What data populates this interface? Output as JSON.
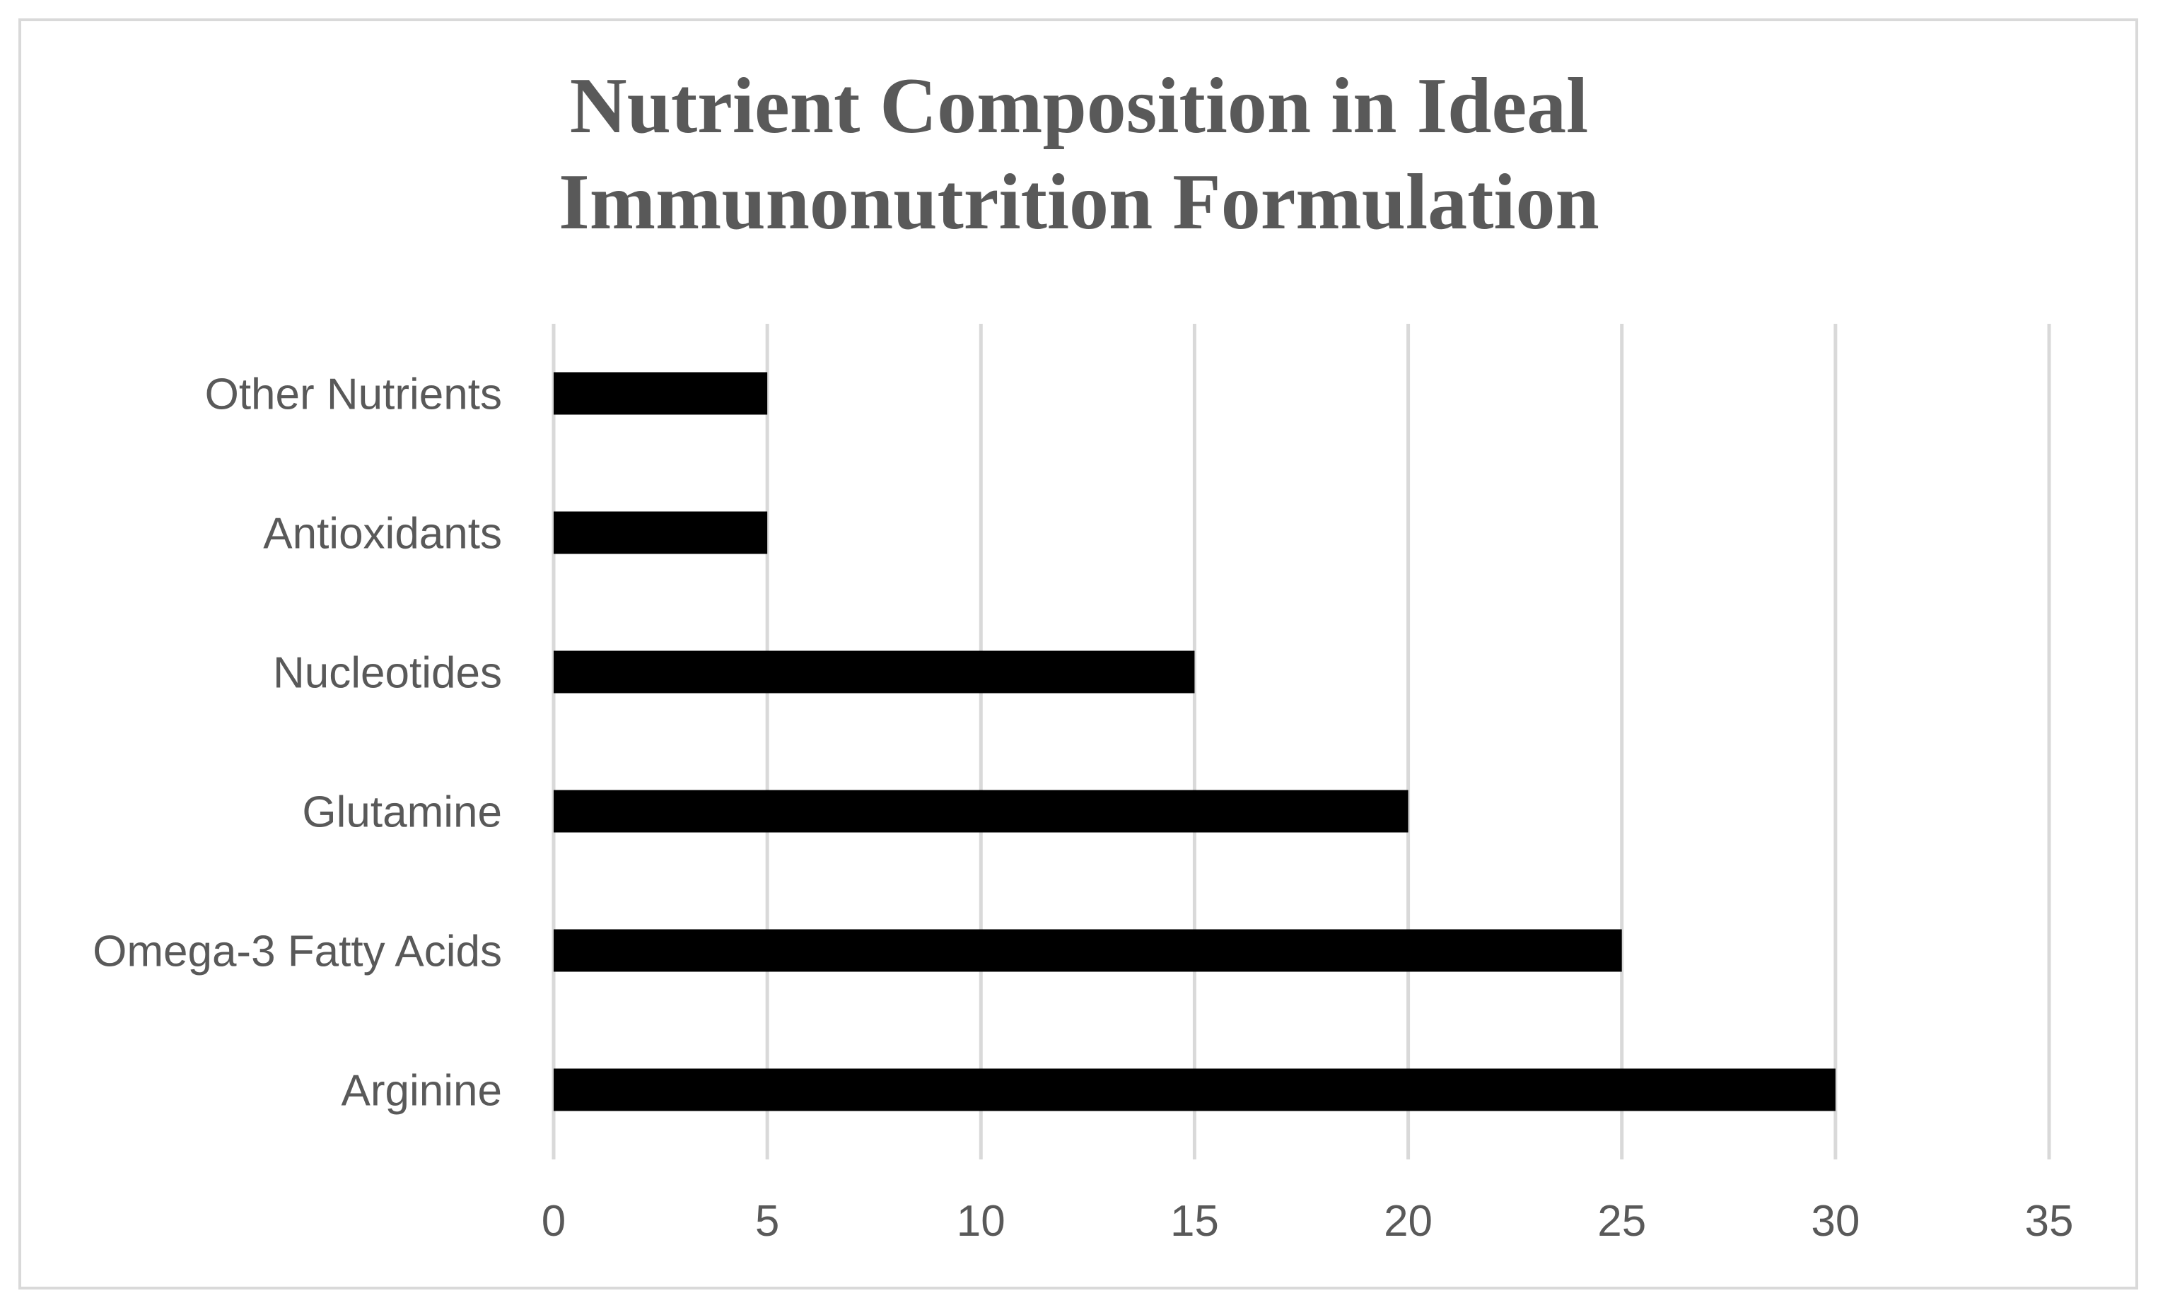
{
  "chart_data": {
    "type": "bar",
    "orientation": "horizontal",
    "title_lines": [
      "Nutrient Composition in Ideal",
      "Immunonutrition Formulation"
    ],
    "categories": [
      "Arginine",
      "Omega-3 Fatty Acids",
      "Glutamine",
      "Nucleotides",
      "Antioxidants",
      "Other Nutrients"
    ],
    "values": [
      30,
      25,
      20,
      15,
      5,
      5
    ],
    "xlabel": "",
    "ylabel": "",
    "xlim": [
      0,
      35
    ],
    "xticks": [
      0,
      5,
      10,
      15,
      20,
      25,
      30,
      35
    ],
    "xtick_labels": [
      "0",
      "5",
      "10",
      "15",
      "20",
      "25",
      "30",
      "35"
    ],
    "grid": "vertical",
    "legend": "none",
    "bar_color": "#000000",
    "grid_color": "#d9d9d9",
    "text_color": "#595959"
  }
}
